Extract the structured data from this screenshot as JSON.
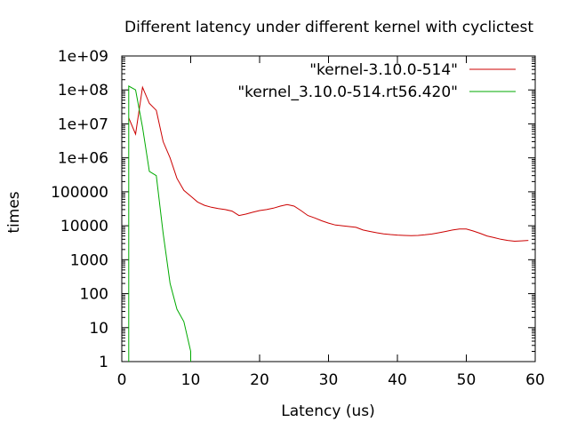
{
  "chart_data": {
    "type": "line",
    "title": "Different latency under different kernel with cyclictest",
    "xlabel": "Latency (us)",
    "ylabel": "times",
    "xlim": [
      0,
      60
    ],
    "ylim": [
      1,
      1000000000
    ],
    "yscale": "log",
    "grid": false,
    "legend_position": "top-right",
    "x_ticks": [
      "0",
      "10",
      "20",
      "30",
      "40",
      "50",
      "60"
    ],
    "y_ticks": [
      "1",
      "10",
      "100",
      "1000",
      "10000",
      "100000",
      "1e+06",
      "1e+07",
      "1e+08",
      "1e+09"
    ],
    "series": [
      {
        "name": "\"kernel-3.10.0-514\"",
        "color": "#cc0000",
        "x": [
          1,
          2,
          3,
          4,
          5,
          6,
          7,
          8,
          9,
          10,
          11,
          12,
          13,
          14,
          15,
          16,
          17,
          18,
          19,
          20,
          21,
          22,
          23,
          24,
          25,
          26,
          27,
          28,
          29,
          30,
          31,
          32,
          33,
          34,
          35,
          36,
          37,
          38,
          39,
          40,
          41,
          42,
          43,
          44,
          45,
          46,
          47,
          48,
          49,
          50,
          51,
          52,
          53,
          54,
          55,
          56,
          57,
          58,
          59
        ],
        "y": [
          15000000,
          5000000,
          120000000,
          40000000,
          25000000,
          3000000,
          1000000,
          250000,
          110000,
          75000,
          50000,
          40000,
          35000,
          32000,
          30000,
          27000,
          20000,
          22000,
          25000,
          28000,
          30000,
          33000,
          38000,
          42000,
          38000,
          28000,
          20000,
          17000,
          14000,
          12000,
          10500,
          10000,
          9500,
          9000,
          7500,
          6800,
          6200,
          5800,
          5500,
          5300,
          5200,
          5100,
          5200,
          5400,
          5700,
          6200,
          6800,
          7500,
          8000,
          8000,
          7000,
          6000,
          5000,
          4500,
          4000,
          3700,
          3500,
          3600,
          3700
        ]
      },
      {
        "name": "\"kernel_3.10.0-514.rt56.420\"",
        "color": "#00aa00",
        "x": [
          1,
          1,
          2,
          3,
          4,
          5,
          6,
          7,
          8,
          9,
          10,
          10
        ],
        "y": [
          1,
          130000000,
          100000000,
          8000000,
          400000,
          300000,
          6000,
          200,
          35,
          15,
          2,
          1
        ]
      }
    ]
  }
}
